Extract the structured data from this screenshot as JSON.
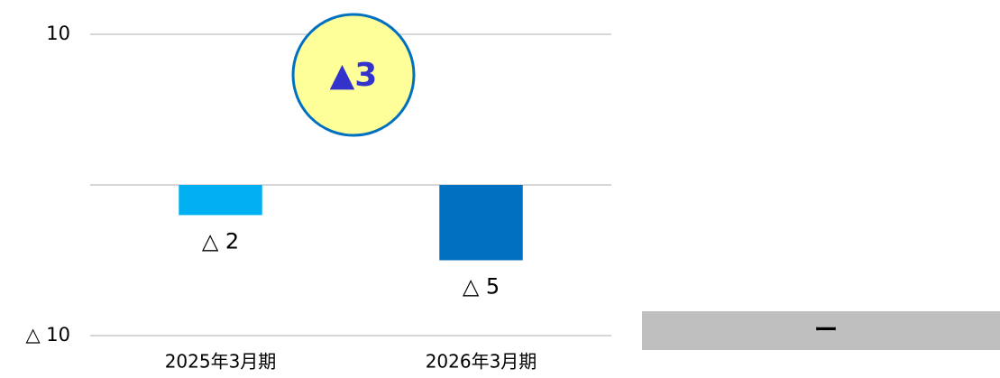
{
  "chart_data": {
    "type": "bar",
    "categories": [
      "2025年3月期",
      "2026年3月期"
    ],
    "values": [
      -2,
      -5
    ],
    "value_labels": [
      "△ 2",
      "△ 5"
    ],
    "colors": [
      "#00b0f0",
      "#0070c0"
    ],
    "ylim": [
      -10,
      10
    ],
    "yticks": [
      {
        "value": -10,
        "label": "△ 10"
      },
      10
    ],
    "grid": true,
    "annotation": "▲3"
  },
  "side_panel": {
    "text": "ー"
  }
}
